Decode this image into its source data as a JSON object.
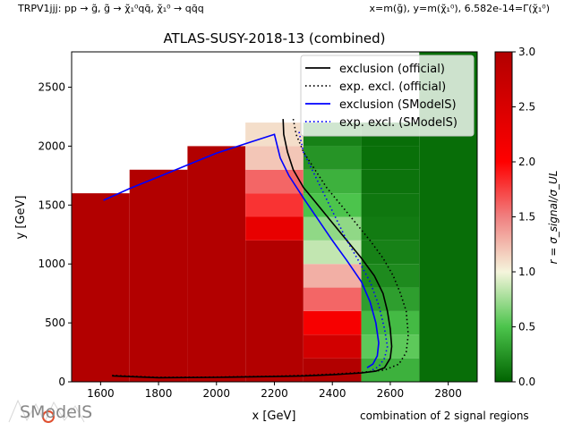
{
  "header": {
    "left": "TRPV1jjj: pp → g̃, g̃ → χ̃₁⁰qq̄, χ̃₁⁰ → qq̄q",
    "right": "x=m(g̃), y=m(χ̃₁⁰), 6.582e-14=Γ(χ̃₁⁰)"
  },
  "footer": {
    "note": "combination of 2 signal regions",
    "logo_text": "SModelS"
  },
  "colors": {
    "excl_official": "#000000",
    "excl_smodels": "#0000ff",
    "background": "#ffffff"
  },
  "chart_data": {
    "type": "heatmap",
    "title": "ATLAS-SUSY-2018-13 (combined)",
    "xlabel": "x [GeV]",
    "ylabel": "y [GeV]",
    "colorbar_label": "r = σ_signal/σ_UL",
    "xlim": [
      1500,
      2900
    ],
    "ylim": [
      0,
      2800
    ],
    "clim": [
      0,
      3
    ],
    "xticks": [
      1600,
      1800,
      2000,
      2200,
      2400,
      2600,
      2800
    ],
    "yticks": [
      0,
      500,
      1000,
      1500,
      2000,
      2500
    ],
    "cticks": [
      0.0,
      0.5,
      1.0,
      1.5,
      2.0,
      2.5,
      3.0
    ],
    "grid": false,
    "legend_position": "top-right",
    "cells": [
      {
        "x0": 1500,
        "x1": 1700,
        "y0": 0,
        "y1": 1600,
        "r": 3.0
      },
      {
        "x0": 1700,
        "x1": 1900,
        "y0": 0,
        "y1": 1800,
        "r": 3.0
      },
      {
        "x0": 1900,
        "x1": 2100,
        "y0": 0,
        "y1": 2000,
        "r": 3.0
      },
      {
        "x0": 2100,
        "x1": 2300,
        "y0": 0,
        "y1": 1200,
        "r": 3.0
      },
      {
        "x0": 2100,
        "x1": 2300,
        "y0": 1200,
        "y1": 1400,
        "r": 2.3
      },
      {
        "x0": 2100,
        "x1": 2300,
        "y0": 1400,
        "y1": 1600,
        "r": 1.8
      },
      {
        "x0": 2100,
        "x1": 2300,
        "y0": 1600,
        "y1": 1800,
        "r": 1.6
      },
      {
        "x0": 2100,
        "x1": 2300,
        "y0": 1800,
        "y1": 2000,
        "r": 1.2
      },
      {
        "x0": 2100,
        "x1": 2300,
        "y0": 2000,
        "y1": 2200,
        "r": 1.1
      },
      {
        "x0": 2300,
        "x1": 2500,
        "y0": 0,
        "y1": 200,
        "r": 3.0
      },
      {
        "x0": 2300,
        "x1": 2500,
        "y0": 200,
        "y1": 400,
        "r": 2.6
      },
      {
        "x0": 2300,
        "x1": 2500,
        "y0": 400,
        "y1": 600,
        "r": 2.1
      },
      {
        "x0": 2300,
        "x1": 2500,
        "y0": 600,
        "y1": 800,
        "r": 1.6
      },
      {
        "x0": 2300,
        "x1": 2500,
        "y0": 800,
        "y1": 1000,
        "r": 1.3
      },
      {
        "x0": 2300,
        "x1": 2500,
        "y0": 1000,
        "y1": 1200,
        "r": 0.85
      },
      {
        "x0": 2300,
        "x1": 2500,
        "y0": 1200,
        "y1": 1400,
        "r": 0.7
      },
      {
        "x0": 2300,
        "x1": 2500,
        "y0": 1400,
        "y1": 1600,
        "r": 0.5
      },
      {
        "x0": 2300,
        "x1": 2500,
        "y0": 1600,
        "y1": 1800,
        "r": 0.4
      },
      {
        "x0": 2300,
        "x1": 2500,
        "y0": 1800,
        "y1": 2000,
        "r": 0.25
      },
      {
        "x0": 2300,
        "x1": 2500,
        "y0": 2000,
        "y1": 2200,
        "r": 0.15
      },
      {
        "x0": 2500,
        "x1": 2700,
        "y0": 0,
        "y1": 200,
        "r": 0.4
      },
      {
        "x0": 2500,
        "x1": 2700,
        "y0": 200,
        "y1": 400,
        "r": 0.55
      },
      {
        "x0": 2500,
        "x1": 2700,
        "y0": 400,
        "y1": 600,
        "r": 0.45
      },
      {
        "x0": 2500,
        "x1": 2700,
        "y0": 600,
        "y1": 800,
        "r": 0.3
      },
      {
        "x0": 2500,
        "x1": 2700,
        "y0": 800,
        "y1": 1000,
        "r": 0.2
      },
      {
        "x0": 2500,
        "x1": 2700,
        "y0": 1000,
        "y1": 1200,
        "r": 0.15
      },
      {
        "x0": 2500,
        "x1": 2700,
        "y0": 1200,
        "y1": 1400,
        "r": 0.12
      },
      {
        "x0": 2500,
        "x1": 2700,
        "y0": 1400,
        "y1": 1600,
        "r": 0.1
      },
      {
        "x0": 2500,
        "x1": 2700,
        "y0": 1600,
        "y1": 1800,
        "r": 0.08
      },
      {
        "x0": 2500,
        "x1": 2700,
        "y0": 1800,
        "y1": 2000,
        "r": 0.06
      },
      {
        "x0": 2500,
        "x1": 2700,
        "y0": 2000,
        "y1": 2200,
        "r": 0.05
      },
      {
        "x0": 2700,
        "x1": 2900,
        "y0": 0,
        "y1": 2800,
        "r": 0.05
      }
    ],
    "series": [
      {
        "name": "exclusion (official)",
        "color": "#000000",
        "style": "solid",
        "x": [
          2230,
          2232,
          2245,
          2265,
          2300,
          2350,
          2400,
          2450,
          2500,
          2545,
          2575,
          2590,
          2600,
          2605,
          2600,
          2580,
          2550,
          2500,
          2400,
          2300,
          2200,
          2000,
          1800,
          1640
        ],
        "y": [
          2230,
          2100,
          1950,
          1800,
          1650,
          1500,
          1350,
          1200,
          1050,
          900,
          750,
          600,
          450,
          300,
          200,
          120,
          90,
          75,
          60,
          50,
          45,
          38,
          35,
          50
        ]
      },
      {
        "name": "exp. excl. (official)",
        "color": "#000000",
        "style": "dotted",
        "x": [
          2265,
          2275,
          2300,
          2340,
          2380,
          2430,
          2480,
          2530,
          2575,
          2610,
          2635,
          2655,
          2662,
          2655,
          2630,
          2580,
          2500,
          2400,
          2300,
          2200,
          2000,
          1800,
          1640
        ],
        "y": [
          2230,
          2100,
          1950,
          1800,
          1650,
          1500,
          1350,
          1200,
          1050,
          900,
          750,
          600,
          400,
          250,
          150,
          100,
          80,
          65,
          55,
          48,
          40,
          38,
          55
        ]
      },
      {
        "name": "exclusion (SModelS)",
        "color": "#0000ff",
        "style": "solid",
        "x": [
          1610,
          1700,
          1800,
          1900,
          2000,
          2100,
          2200,
          2220,
          2250,
          2300,
          2350,
          2400,
          2450,
          2500,
          2530,
          2550,
          2560,
          2555,
          2540,
          2520
        ],
        "y": [
          1540,
          1640,
          1740,
          1840,
          1940,
          2020,
          2100,
          1900,
          1750,
          1560,
          1380,
          1200,
          1030,
          850,
          680,
          500,
          330,
          220,
          150,
          120
        ]
      },
      {
        "name": "exp. excl. (SModelS)",
        "color": "#0000ff",
        "style": "dotted",
        "x": [
          2285,
          2300,
          2330,
          2370,
          2410,
          2450,
          2490,
          2530,
          2560,
          2580,
          2590,
          2580,
          2560,
          2530
        ],
        "y": [
          2120,
          1950,
          1800,
          1600,
          1400,
          1200,
          1030,
          850,
          650,
          450,
          300,
          200,
          130,
          90
        ]
      }
    ]
  }
}
